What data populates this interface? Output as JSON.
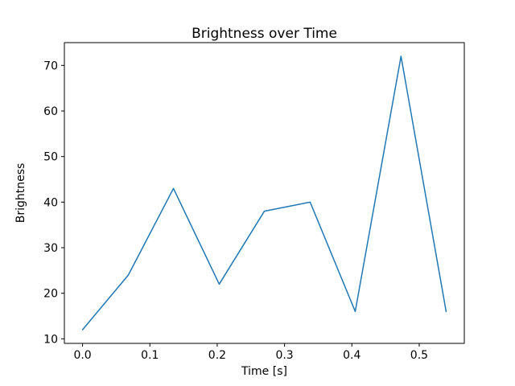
{
  "figure": {
    "background": "#ffffff"
  },
  "chart_data": {
    "type": "line",
    "title": "Brightness over Time",
    "xlabel": "Time [s]",
    "ylabel": "Brightness",
    "x": [
      0.0,
      0.068,
      0.135,
      0.203,
      0.27,
      0.338,
      0.405,
      0.473,
      0.54
    ],
    "y": [
      12,
      24,
      43,
      22,
      38,
      40,
      16,
      72,
      16
    ],
    "xlim": [
      -0.027,
      0.567
    ],
    "ylim": [
      9,
      75
    ],
    "xticks": [
      0.0,
      0.1,
      0.2,
      0.3,
      0.4,
      0.5
    ],
    "xtick_labels": [
      "0.0",
      "0.1",
      "0.2",
      "0.3",
      "0.4",
      "0.5"
    ],
    "yticks": [
      10,
      20,
      30,
      40,
      50,
      60,
      70
    ],
    "ytick_labels": [
      "10",
      "20",
      "30",
      "40",
      "50",
      "60",
      "70"
    ],
    "line_color": "#1f77b4",
    "line_width": 1.5,
    "grid": false,
    "legend_position": "none"
  }
}
